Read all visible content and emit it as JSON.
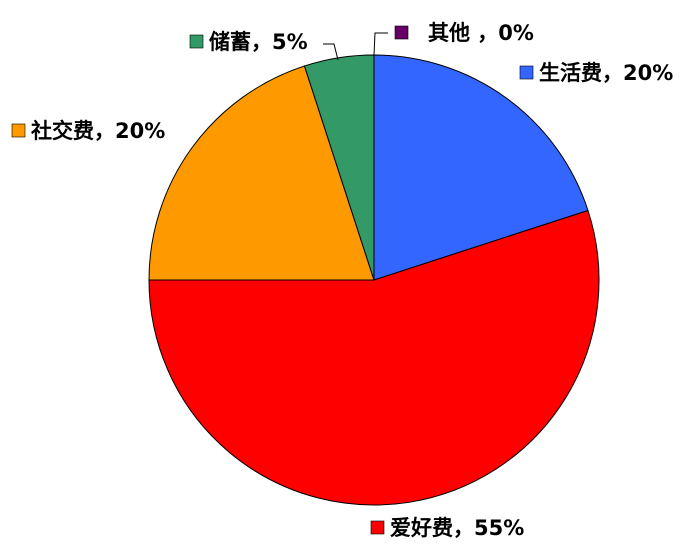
{
  "chart_data": {
    "type": "pie",
    "slices": [
      {
        "name": "生活费",
        "value": 20,
        "label": "生活费，20%",
        "color": "#3366ff"
      },
      {
        "name": "爱好费",
        "value": 55,
        "label": "爱好费，55%",
        "color": "#ff0000"
      },
      {
        "name": "社交费",
        "value": 20,
        "label": "社交费，20%",
        "color": "#ff9900"
      },
      {
        "name": "储蓄",
        "value": 5,
        "label": "储蓄，5%",
        "color": "#339966"
      },
      {
        "name": "其他",
        "value": 0,
        "label": "其他 ，0%",
        "color": "#660066"
      }
    ]
  }
}
